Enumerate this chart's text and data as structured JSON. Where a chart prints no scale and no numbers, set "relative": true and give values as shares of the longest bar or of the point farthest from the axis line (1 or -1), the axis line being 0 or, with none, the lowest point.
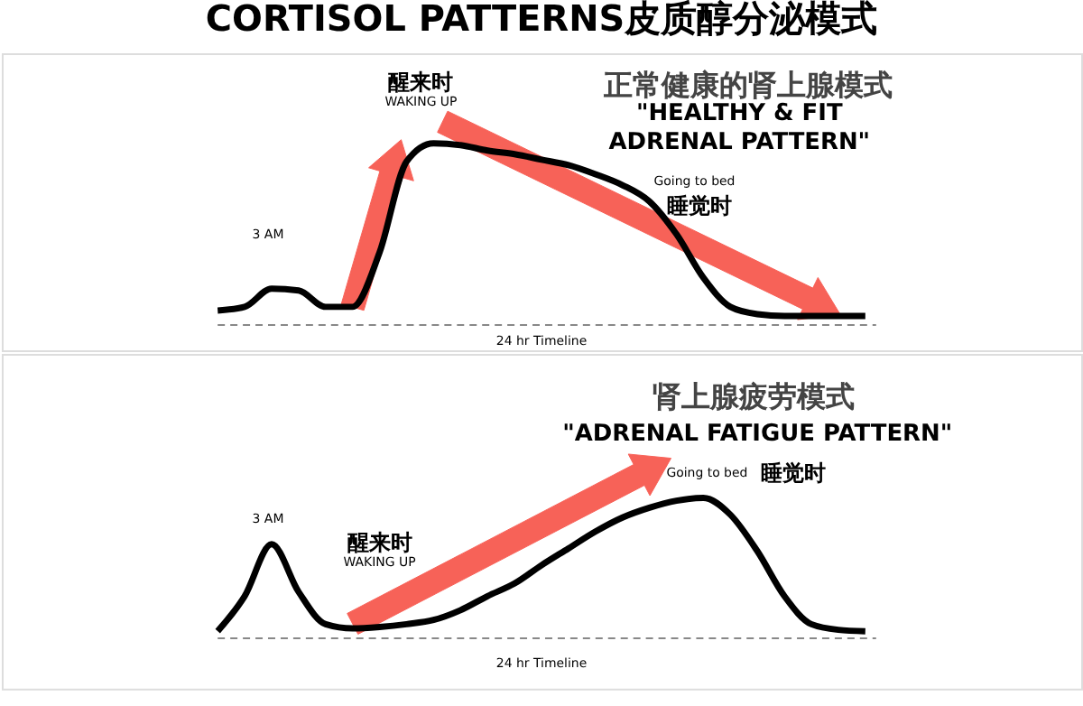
{
  "chart_data": [
    {
      "type": "line",
      "title": "CORTISOL PATTERNS皮质醇分泌模式",
      "subtitle": "正常健康的肾上腺模式",
      "xlabel": "24 hr Timeline",
      "relative": true,
      "marker": "none",
      "line_style": "solid",
      "categories": [
        null,
        null,
        null,
        null,
        null,
        null,
        null,
        null,
        null,
        null,
        null,
        null,
        null,
        null,
        null,
        null,
        null,
        null,
        null,
        null,
        null,
        null,
        null,
        null,
        null
      ],
      "series": [
        {
          "color": "#000000",
          "values": [
            0.08,
            0.1,
            0.2,
            0.19,
            0.1,
            0.1,
            0.4,
            0.9,
            1.0,
            0.99,
            0.96,
            0.94,
            0.91,
            0.88,
            0.83,
            0.77,
            0.68,
            0.5,
            0.26,
            0.1,
            0.06,
            0.05,
            0.05,
            0.05,
            0.05
          ]
        }
      ],
      "annotations": [
        "\"HEALTHY & FIT ADRENAL PATTERN\"",
        "3 AM",
        "醒来时",
        "WAKING UP",
        "Going to bed",
        "睡觉时"
      ]
    },
    {
      "type": "line",
      "subtitle": "肾上腺疲劳模式",
      "xlabel": "24 hr Timeline",
      "relative": true,
      "marker": "none",
      "line_style": "solid",
      "categories": [
        null,
        null,
        null,
        null,
        null,
        null,
        null,
        null,
        null,
        null,
        null,
        null,
        null,
        null,
        null,
        null,
        null,
        null,
        null,
        null,
        null,
        null,
        null,
        null,
        null
      ],
      "series": [
        {
          "color": "#000000",
          "values": [
            0.05,
            0.3,
            0.67,
            0.33,
            0.1,
            0.07,
            0.08,
            0.1,
            0.13,
            0.2,
            0.3,
            0.39,
            0.52,
            0.64,
            0.76,
            0.86,
            0.93,
            0.98,
            1.0,
            0.88,
            0.62,
            0.3,
            0.1,
            0.06,
            0.05
          ]
        }
      ],
      "annotations": [
        "\"ADRENAL FATIGUE PATTERN\"",
        "3 AM",
        "醒来时",
        "WAKING UP",
        "Going to bed",
        "睡觉时"
      ]
    }
  ]
}
